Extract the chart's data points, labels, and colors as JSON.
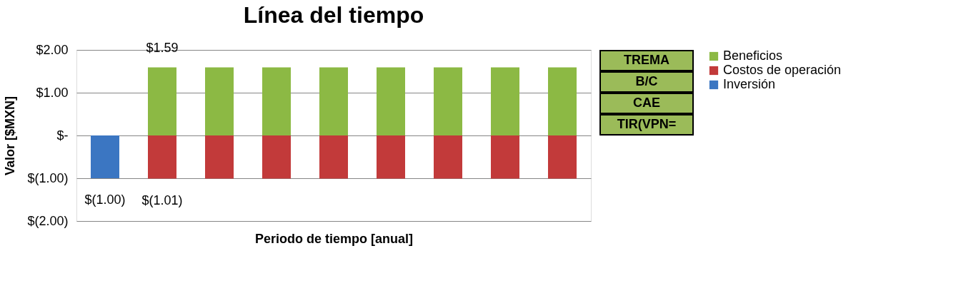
{
  "chart_data": {
    "type": "bar",
    "title": "Línea del tiempo",
    "xlabel": "Periodo de tiempo [anual]",
    "ylabel": "Valor [$MXN]",
    "categories": [
      null,
      null,
      null,
      null,
      null,
      null,
      null,
      null,
      null
    ],
    "series": [
      {
        "name": "Beneficios",
        "color": "#8cb944",
        "values": [
          null,
          1.59,
          1.59,
          1.59,
          1.59,
          1.59,
          1.59,
          1.59,
          1.59
        ],
        "value_labels": [
          null,
          "$1.59",
          null,
          null,
          null,
          null,
          null,
          null,
          null
        ]
      },
      {
        "name": "Costos de operación",
        "color": "#c23a3a",
        "values": [
          null,
          -1.01,
          -1.01,
          -1.01,
          -1.01,
          -1.01,
          -1.01,
          -1.01,
          -1.01
        ],
        "value_labels": [
          null,
          "$(1.01)",
          null,
          null,
          null,
          null,
          null,
          null,
          null
        ]
      },
      {
        "name": "Inversión",
        "color": "#3b76c2",
        "values": [
          -1.0,
          null,
          null,
          null,
          null,
          null,
          null,
          null,
          null
        ],
        "value_labels": [
          "$(1.00)",
          null,
          null,
          null,
          null,
          null,
          null,
          null,
          null
        ]
      }
    ],
    "stacked": true,
    "ylim": [
      -2,
      2
    ],
    "yticks": [
      {
        "value": -2,
        "label": "$(2.00)"
      },
      {
        "value": -1,
        "label": "$(1.00)"
      },
      {
        "value": 0,
        "label": "$-"
      },
      {
        "value": 1,
        "label": "$1.00"
      },
      {
        "value": 2,
        "label": "$2.00"
      }
    ],
    "grid": "y",
    "legend": "right",
    "annotations": [
      "TREMA",
      "B/C",
      "CAE",
      "TIR(VPN="
    ]
  }
}
